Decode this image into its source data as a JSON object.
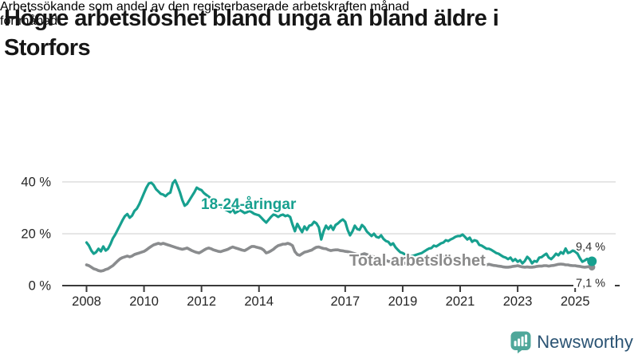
{
  "header": {
    "title_lines": [
      "Högre arbetslöshet bland unga än bland äldre i",
      "Storfors"
    ],
    "subtitle_lines": [
      "Arbetssökande som andel av den registerbaserade arbetskraften månad",
      "för månad."
    ]
  },
  "branding": {
    "logo_text": "Newsworthy",
    "logo_icon": "bar-chart-speech-bubble-icon",
    "logo_icon_color": "#4FA79A",
    "logo_text_color": "#2A5373"
  },
  "chart_data": {
    "type": "line",
    "unit": "%",
    "frequency": "monthly",
    "x_start": "2008-01",
    "x_end": "2025-08",
    "grid": "horizontal",
    "ylim": [
      0,
      44
    ],
    "x_tick_years": [
      2008,
      2010,
      2012,
      2014,
      2017,
      2019,
      2021,
      2023,
      2025
    ],
    "y_ticks": [
      {
        "value": 0,
        "label": "0 %"
      },
      {
        "value": 20,
        "label": "20 %"
      },
      {
        "value": 40,
        "label": "40 %"
      }
    ],
    "series": [
      {
        "name": "18-24-åringar",
        "color": "#17A08F",
        "end_label": "9,4 %",
        "end_value": 9.4,
        "values": [
          16.6,
          15.4,
          13.5,
          12.3,
          12.9,
          14.2,
          13.2,
          15.1,
          13.5,
          14.2,
          16.0,
          18.2,
          19.7,
          21.5,
          23.3,
          25.2,
          26.8,
          27.6,
          26.2,
          27.0,
          28.8,
          29.7,
          31.4,
          33.5,
          35.7,
          37.8,
          39.4,
          39.7,
          38.8,
          37.2,
          36.3,
          35.4,
          35.1,
          34.5,
          35.4,
          35.9,
          39.5,
          40.6,
          38.5,
          36.0,
          33.0,
          30.8,
          31.5,
          33.0,
          34.5,
          36.0,
          37.8,
          37.2,
          36.8,
          35.7,
          35.0,
          34.3,
          33.5,
          32.7,
          31.9,
          31.2,
          30.5,
          29.8,
          29.3,
          28.9,
          28.3,
          29.5,
          28.0,
          28.5,
          29.1,
          28.6,
          28.0,
          28.3,
          28.8,
          28.3,
          27.7,
          27.4,
          27.1,
          26.2,
          25.2,
          24.3,
          25.4,
          26.5,
          27.4,
          27.1,
          26.5,
          27.1,
          27.4,
          26.8,
          27.1,
          26.5,
          23.5,
          21.0,
          23.8,
          22.2,
          20.6,
          22.8,
          21.5,
          23.1,
          23.4,
          24.6,
          24.0,
          22.5,
          17.8,
          21.0,
          23.1,
          21.8,
          23.1,
          21.5,
          23.4,
          24.0,
          24.9,
          25.5,
          24.6,
          21.5,
          19.4,
          20.9,
          23.1,
          21.8,
          21.5,
          23.4,
          22.5,
          20.9,
          20.0,
          19.1,
          20.0,
          18.8,
          18.5,
          19.4,
          18.0,
          17.2,
          16.9,
          15.7,
          16.3,
          14.8,
          13.8,
          12.9,
          12.6,
          12.0,
          11.4,
          11.2,
          11.4,
          11.7,
          12.0,
          12.3,
          12.6,
          13.2,
          13.8,
          14.3,
          14.5,
          15.4,
          15.1,
          15.7,
          16.3,
          16.6,
          17.5,
          17.2,
          17.8,
          18.2,
          18.8,
          19.1,
          19.1,
          19.7,
          18.8,
          17.8,
          18.5,
          16.9,
          17.5,
          17.2,
          15.7,
          15.4,
          14.8,
          14.2,
          14.2,
          13.8,
          13.2,
          12.6,
          12.3,
          11.7,
          11.1,
          10.8,
          10.2,
          10.8,
          9.5,
          10.2,
          9.2,
          9.8,
          8.6,
          9.5,
          11.1,
          10.2,
          8.6,
          9.5,
          9.2,
          10.8,
          11.0,
          11.7,
          12.3,
          10.8,
          10.2,
          11.1,
          12.3,
          11.7,
          12.9,
          12.3,
          14.3,
          12.6,
          12.9,
          13.5,
          13.1,
          12.3,
          10.6,
          9.2,
          9.7,
          10.3,
          9.7,
          9.4
        ]
      },
      {
        "name": "Total arbetslöshet",
        "color": "#8A8C8E",
        "end_label": "7,1 %",
        "end_value": 7.1,
        "values": [
          8.0,
          7.7,
          7.1,
          6.5,
          6.2,
          5.8,
          5.6,
          5.8,
          6.2,
          6.5,
          7.1,
          7.7,
          8.6,
          9.5,
          10.3,
          10.8,
          11.1,
          11.4,
          11.1,
          11.4,
          12.0,
          12.3,
          12.6,
          12.9,
          13.2,
          13.8,
          14.5,
          15.1,
          15.7,
          16.0,
          16.3,
          16.0,
          16.3,
          16.0,
          15.7,
          15.4,
          15.1,
          14.8,
          14.5,
          14.2,
          14.0,
          14.2,
          14.5,
          14.0,
          13.5,
          13.1,
          12.8,
          12.6,
          13.1,
          13.7,
          14.2,
          14.5,
          14.2,
          13.8,
          13.5,
          13.2,
          13.1,
          13.4,
          13.7,
          14.0,
          14.5,
          14.9,
          14.6,
          14.3,
          14.0,
          13.7,
          13.5,
          14.0,
          14.6,
          15.1,
          15.1,
          14.8,
          14.6,
          14.3,
          13.7,
          12.6,
          12.9,
          13.4,
          14.0,
          14.8,
          15.4,
          15.7,
          16.0,
          16.0,
          16.3,
          16.0,
          15.4,
          13.1,
          12.0,
          11.7,
          12.3,
          12.9,
          13.1,
          13.4,
          13.7,
          14.3,
          14.8,
          14.9,
          14.6,
          14.3,
          14.2,
          13.8,
          13.5,
          13.7,
          13.8,
          13.8,
          13.5,
          13.4,
          13.2,
          13.1,
          12.9,
          12.6,
          12.3,
          12.0,
          11.7,
          12.0,
          12.3,
          12.0,
          11.7,
          11.4,
          11.1,
          10.8,
          10.5,
          10.2,
          10.0,
          9.7,
          9.4,
          9.1,
          8.9,
          8.6,
          8.6,
          8.9,
          8.9,
          8.6,
          8.5,
          8.5,
          8.6,
          8.9,
          9.1,
          9.2,
          9.4,
          9.7,
          10.0,
          10.3,
          10.6,
          10.9,
          11.2,
          11.5,
          11.4,
          11.2,
          10.9,
          10.8,
          10.5,
          10.2,
          10.0,
          10.0,
          10.2,
          10.0,
          9.8,
          9.5,
          9.2,
          8.9,
          8.9,
          8.6,
          8.3,
          8.2,
          8.0,
          8.0,
          8.2,
          8.0,
          7.8,
          7.7,
          7.5,
          7.4,
          7.2,
          7.1,
          7.1,
          7.2,
          7.4,
          7.5,
          7.7,
          7.4,
          7.2,
          7.1,
          7.2,
          7.1,
          7.1,
          7.2,
          7.4,
          7.5,
          7.5,
          7.7,
          7.7,
          7.5,
          7.7,
          7.8,
          8.0,
          8.2,
          8.3,
          8.2,
          8.0,
          8.0,
          7.8,
          7.7,
          7.7,
          7.5,
          7.4,
          7.2,
          7.1,
          7.2,
          7.4,
          7.1
        ]
      }
    ]
  }
}
